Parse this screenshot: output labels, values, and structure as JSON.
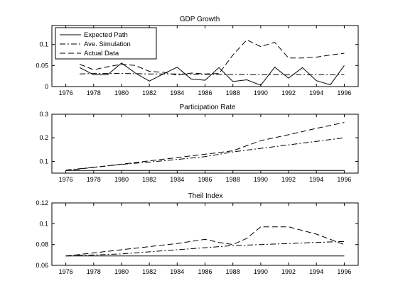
{
  "chart_data": [
    {
      "type": "line",
      "title": "GDP Growth",
      "xlim": [
        1975,
        1997
      ],
      "ylim": [
        0,
        0.145
      ],
      "xticks": [
        1976,
        1978,
        1980,
        1982,
        1984,
        1986,
        1988,
        1990,
        1992,
        1994,
        1996
      ],
      "yticks": [
        0,
        0.05,
        0.1
      ],
      "ytick_labels": [
        "0",
        "0.05",
        "0.1"
      ],
      "legend_position": "top-left",
      "series": [
        {
          "name": "Expected Path",
          "style": "solid",
          "x": [
            1977,
            1978,
            1979,
            1980,
            1981,
            1982,
            1983,
            1984,
            1985,
            1986,
            1987,
            1988,
            1989,
            1990,
            1991,
            1992,
            1993,
            1994,
            1995,
            1996
          ],
          "y": [
            0.045,
            0.028,
            0.028,
            0.056,
            0.032,
            0.013,
            0.03,
            0.046,
            0.018,
            0.015,
            0.045,
            0.012,
            0.016,
            0.003,
            0.046,
            0.02,
            0.045,
            0.014,
            0.004,
            0.05
          ]
        },
        {
          "name": "Ave. Simulation",
          "style": "dashdot",
          "x": [
            1977,
            1978,
            1980,
            1982,
            1984,
            1986,
            1988,
            1990,
            1992,
            1994,
            1996
          ],
          "y": [
            0.03,
            0.031,
            0.031,
            0.03,
            0.03,
            0.029,
            0.029,
            0.028,
            0.028,
            0.028,
            0.028
          ]
        },
        {
          "name": "Actual Data",
          "style": "dashed",
          "x": [
            1977,
            1978,
            1979,
            1980,
            1981,
            1982,
            1983,
            1984,
            1985,
            1986,
            1987,
            1988,
            1989,
            1990,
            1991,
            1992,
            1993,
            1994,
            1995,
            1996
          ],
          "y": [
            0.053,
            0.04,
            0.047,
            0.053,
            0.05,
            0.036,
            0.034,
            0.027,
            0.032,
            0.03,
            0.031,
            0.075,
            0.111,
            0.095,
            0.105,
            0.068,
            0.068,
            0.07,
            0.075,
            0.079
          ]
        }
      ]
    },
    {
      "type": "line",
      "title": "Participation Rate",
      "xlim": [
        1975,
        1997
      ],
      "ylim": [
        0.05,
        0.3
      ],
      "xticks": [
        1976,
        1978,
        1980,
        1982,
        1984,
        1986,
        1988,
        1990,
        1992,
        1994,
        1996
      ],
      "yticks": [
        0.1,
        0.2,
        0.3
      ],
      "ytick_labels": [
        "0.1",
        "0.2",
        "0.3"
      ],
      "series": [
        {
          "name": "Expected Path",
          "style": "solid",
          "x": [
            1976,
            1996
          ],
          "y": [
            0.061,
            0.061
          ]
        },
        {
          "name": "Ave. Simulation",
          "style": "dashdot",
          "x": [
            1976,
            1978,
            1980,
            1982,
            1984,
            1986,
            1988,
            1990,
            1992,
            1994,
            1996
          ],
          "y": [
            0.063,
            0.075,
            0.087,
            0.097,
            0.108,
            0.12,
            0.14,
            0.155,
            0.17,
            0.185,
            0.2
          ]
        },
        {
          "name": "Actual Data",
          "style": "dashed",
          "x": [
            1976,
            1978,
            1980,
            1982,
            1984,
            1986,
            1988,
            1990,
            1992,
            1994,
            1996
          ],
          "y": [
            0.061,
            0.074,
            0.088,
            0.102,
            0.116,
            0.13,
            0.145,
            0.188,
            0.213,
            0.24,
            0.265
          ]
        }
      ]
    },
    {
      "type": "line",
      "title": "Theil Index",
      "xlim": [
        1975,
        1997
      ],
      "ylim": [
        0.06,
        0.12
      ],
      "xticks": [
        1976,
        1978,
        1980,
        1982,
        1984,
        1986,
        1988,
        1990,
        1992,
        1994,
        1996
      ],
      "yticks": [
        0.06,
        0.08,
        0.1,
        0.12
      ],
      "ytick_labels": [
        "0.06",
        "0.08",
        "0.1",
        "0.12"
      ],
      "series": [
        {
          "name": "Expected Path",
          "style": "solid",
          "x": [
            1976,
            1996
          ],
          "y": [
            0.069,
            0.069
          ]
        },
        {
          "name": "Ave. Simulation",
          "style": "dashdot",
          "x": [
            1976,
            1978,
            1980,
            1982,
            1984,
            1986,
            1988,
            1990,
            1992,
            1994,
            1996
          ],
          "y": [
            0.069,
            0.07,
            0.071,
            0.073,
            0.075,
            0.077,
            0.079,
            0.08,
            0.081,
            0.082,
            0.083
          ]
        },
        {
          "name": "Actual Data",
          "style": "dashed",
          "x": [
            1976,
            1978,
            1980,
            1982,
            1984,
            1986,
            1987,
            1988,
            1989,
            1990,
            1992,
            1994,
            1996
          ],
          "y": [
            0.069,
            0.072,
            0.075,
            0.078,
            0.081,
            0.085,
            0.082,
            0.08,
            0.086,
            0.097,
            0.097,
            0.09,
            0.08
          ]
        }
      ]
    }
  ],
  "colors": {
    "line": "#000000",
    "background": "#ffffff",
    "frame": "#000000"
  }
}
